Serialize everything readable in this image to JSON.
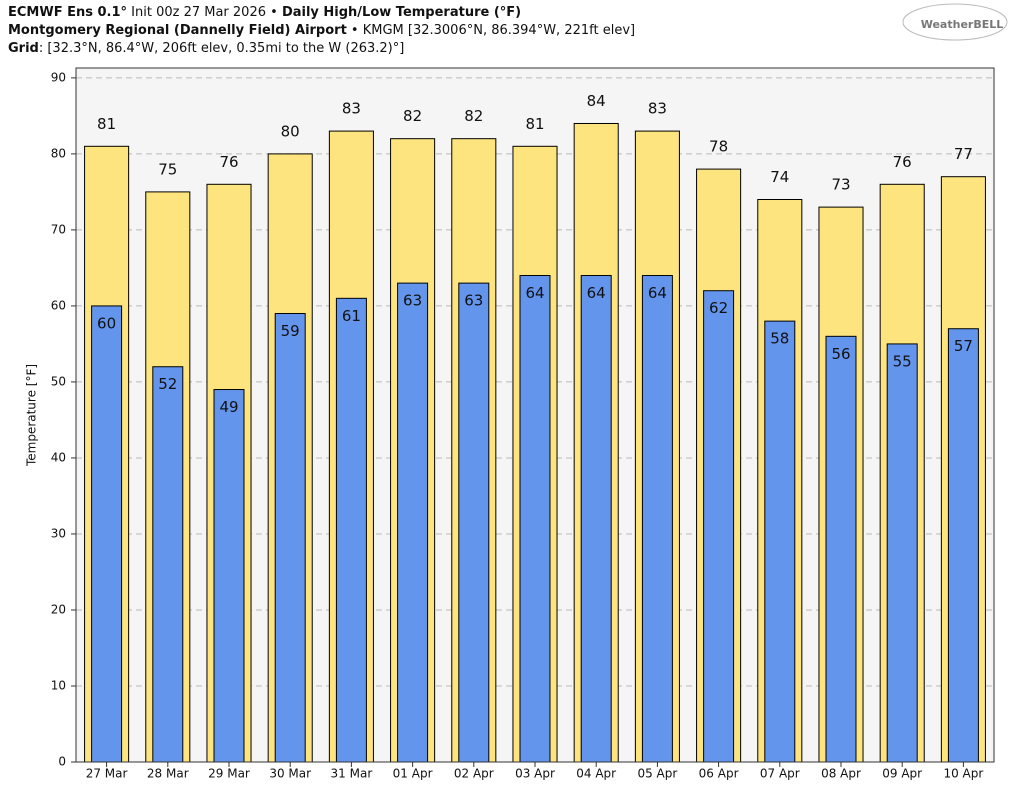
{
  "chart_data": {
    "type": "overlap_bar",
    "title_lines": [
      [
        {
          "text": "ECMWF Ens 0.1°",
          "bold": true
        },
        {
          "text": " Init 00z 27 Mar 2026 • ",
          "bold": false
        },
        {
          "text": "Daily High/Low Temperature (°F)",
          "bold": true
        }
      ],
      [
        {
          "text": "Montgomery Regional (Dannelly Field) Airport",
          "bold": true
        },
        {
          "text": " • KMGM [32.3006°N, 86.394°W, 221ft elev]",
          "bold": false
        }
      ],
      [
        {
          "text": "Grid",
          "bold": true
        },
        {
          "text": ": [32.3°N, 86.4°W, 206ft elev, 0.35mi to the W (263.2)°]",
          "bold": false
        }
      ]
    ],
    "logo": "WeatherBELL",
    "ylabel": "Temperature [°F]",
    "categories": [
      "27 Mar",
      "28 Mar",
      "29 Mar",
      "30 Mar",
      "31 Mar",
      "01 Apr",
      "02 Apr",
      "03 Apr",
      "04 Apr",
      "05 Apr",
      "06 Apr",
      "07 Apr",
      "08 Apr",
      "09 Apr",
      "10 Apr"
    ],
    "series": [
      {
        "color": "#fde47f",
        "values": [
          81,
          75,
          76,
          80,
          83,
          82,
          82,
          81,
          84,
          83,
          78,
          74,
          73,
          76,
          77
        ]
      },
      {
        "color": "#6495ed",
        "values": [
          60,
          52,
          49,
          59,
          61,
          63,
          63,
          64,
          64,
          64,
          62,
          58,
          56,
          55,
          57
        ]
      }
    ],
    "ylim": [
      0,
      91.3
    ],
    "yticks": [
      0,
      10,
      20,
      30,
      40,
      50,
      60,
      70,
      80,
      90
    ],
    "grid": true
  }
}
